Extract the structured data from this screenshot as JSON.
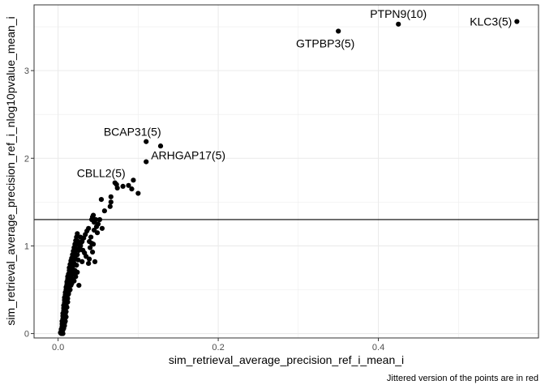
{
  "chart_data": {
    "type": "scatter",
    "xlabel": "sim_retrieval_average_precision_ref_i_mean_i",
    "ylabel": "sim_retrieval_average_precision_ref_i_nlog10pvalue_mean_i",
    "caption": "Jittered version of the points are in red",
    "xlim": [
      -0.03,
      0.6
    ],
    "ylim": [
      -0.05,
      3.75
    ],
    "x_ticks": [
      0.0,
      0.2,
      0.4
    ],
    "y_ticks": [
      0,
      1,
      2,
      3
    ],
    "x_tick_labels": [
      "0.0",
      "0.2",
      "0.4"
    ],
    "y_tick_labels": [
      "0",
      "1",
      "2",
      "3"
    ],
    "hline": 1.3,
    "grid": true,
    "point_color": "#000000",
    "points": [
      [
        0.003,
        0.01
      ],
      [
        0.004,
        0.03
      ],
      [
        0.004,
        0.05
      ],
      [
        0.005,
        0.08
      ],
      [
        0.005,
        0.11
      ],
      [
        0.005,
        0.14
      ],
      [
        0.006,
        0.17
      ],
      [
        0.006,
        0.2
      ],
      [
        0.006,
        0.23
      ],
      [
        0.007,
        0.26
      ],
      [
        0.007,
        0.29
      ],
      [
        0.007,
        0.32
      ],
      [
        0.008,
        0.35
      ],
      [
        0.008,
        0.38
      ],
      [
        0.008,
        0.41
      ],
      [
        0.009,
        0.44
      ],
      [
        0.009,
        0.47
      ],
      [
        0.01,
        0.5
      ],
      [
        0.01,
        0.53
      ],
      [
        0.011,
        0.56
      ],
      [
        0.011,
        0.59
      ],
      [
        0.012,
        0.62
      ],
      [
        0.012,
        0.65
      ],
      [
        0.013,
        0.68
      ],
      [
        0.014,
        0.72
      ],
      [
        0.014,
        0.75
      ],
      [
        0.015,
        0.79
      ],
      [
        0.016,
        0.83
      ],
      [
        0.017,
        0.86
      ],
      [
        0.018,
        0.9
      ],
      [
        0.019,
        0.94
      ],
      [
        0.02,
        0.98
      ],
      [
        0.021,
        1.02
      ],
      [
        0.022,
        1.06
      ],
      [
        0.023,
        1.1
      ],
      [
        0.024,
        1.14
      ],
      [
        0.009,
        0.22
      ],
      [
        0.01,
        0.32
      ],
      [
        0.011,
        0.42
      ],
      [
        0.012,
        0.52
      ],
      [
        0.013,
        0.58
      ],
      [
        0.014,
        0.63
      ],
      [
        0.015,
        0.68
      ],
      [
        0.016,
        0.73
      ],
      [
        0.017,
        0.77
      ],
      [
        0.018,
        0.82
      ],
      [
        0.019,
        0.86
      ],
      [
        0.02,
        0.9
      ],
      [
        0.021,
        0.94
      ],
      [
        0.022,
        0.97
      ],
      [
        0.012,
        0.36
      ],
      [
        0.013,
        0.47
      ],
      [
        0.014,
        0.55
      ],
      [
        0.015,
        0.6
      ],
      [
        0.016,
        0.66
      ],
      [
        0.017,
        0.71
      ],
      [
        0.018,
        0.76
      ],
      [
        0.02,
        0.8
      ],
      [
        0.022,
        0.85
      ],
      [
        0.024,
        0.9
      ],
      [
        0.026,
        0.95
      ],
      [
        0.028,
        1.0
      ],
      [
        0.03,
        1.05
      ],
      [
        0.032,
        1.09
      ],
      [
        0.034,
        1.13
      ],
      [
        0.036,
        1.17
      ],
      [
        0.027,
        0.98
      ],
      [
        0.029,
        1.04
      ],
      [
        0.031,
        0.95
      ],
      [
        0.033,
        0.92
      ],
      [
        0.035,
        0.88
      ],
      [
        0.026,
        0.55
      ],
      [
        0.03,
        0.82
      ],
      [
        0.025,
        1.05
      ],
      [
        0.024,
        1.02
      ],
      [
        0.028,
        1.1
      ],
      [
        0.038,
        1.2
      ],
      [
        0.039,
        1.05
      ],
      [
        0.04,
        0.98
      ],
      [
        0.041,
        1.1
      ],
      [
        0.042,
        1.03
      ],
      [
        0.043,
        0.93
      ],
      [
        0.044,
        1.02
      ],
      [
        0.045,
        1.18
      ],
      [
        0.045,
        1.27
      ],
      [
        0.047,
        1.3
      ],
      [
        0.048,
        1.22
      ],
      [
        0.049,
        1.15
      ],
      [
        0.05,
        1.25
      ],
      [
        0.052,
        1.3
      ],
      [
        0.046,
        0.82
      ],
      [
        0.039,
        0.85
      ],
      [
        0.038,
        0.8
      ],
      [
        0.042,
        1.3
      ],
      [
        0.043,
        1.33
      ],
      [
        0.044,
        1.35
      ],
      [
        0.055,
        1.2
      ],
      [
        0.054,
        1.53
      ],
      [
        0.058,
        1.4
      ],
      [
        0.065,
        1.45
      ],
      [
        0.066,
        1.5
      ],
      [
        0.066,
        1.56
      ],
      [
        0.071,
        1.72
      ],
      [
        0.073,
        1.7
      ],
      [
        0.074,
        1.66
      ],
      [
        0.081,
        1.68
      ],
      [
        0.088,
        1.69
      ],
      [
        0.092,
        1.65
      ],
      [
        0.094,
        1.75
      ],
      [
        0.1,
        1.6
      ],
      [
        0.11,
        1.96
      ],
      [
        0.11,
        2.19
      ],
      [
        0.128,
        2.14
      ],
      [
        0.35,
        3.45
      ],
      [
        0.425,
        3.53
      ],
      [
        0.573,
        3.56
      ],
      [
        0.006,
        0.0
      ],
      [
        0.005,
        0.02
      ],
      [
        0.007,
        0.06
      ],
      [
        0.008,
        0.12
      ],
      [
        0.009,
        0.18
      ],
      [
        0.01,
        0.25
      ],
      [
        0.011,
        0.3
      ],
      [
        0.012,
        0.4
      ],
      [
        0.013,
        0.45
      ],
      [
        0.008,
        0.09
      ],
      [
        0.009,
        0.14
      ],
      [
        0.01,
        0.19
      ],
      [
        0.006,
        0.04
      ],
      [
        0.004,
        0.0
      ],
      [
        0.015,
        0.5
      ],
      [
        0.016,
        0.55
      ],
      [
        0.018,
        0.62
      ],
      [
        0.019,
        0.68
      ],
      [
        0.021,
        0.72
      ],
      [
        0.023,
        0.78
      ],
      [
        0.025,
        0.84
      ],
      [
        0.02,
        0.6
      ],
      [
        0.022,
        0.65
      ],
      [
        0.024,
        0.7
      ],
      [
        0.017,
        0.57
      ],
      [
        0.014,
        0.5
      ]
    ],
    "labels": [
      {
        "text": "KLC3(5)",
        "x": 0.573,
        "y": 3.56,
        "anchor": "right"
      },
      {
        "text": "PTPN9(10)",
        "x": 0.425,
        "y": 3.53,
        "anchor": "above"
      },
      {
        "text": "GTPBP3(5)",
        "x": 0.35,
        "y": 3.45,
        "anchor": "below"
      },
      {
        "text": "BCAP31(5)",
        "x": 0.11,
        "y": 2.19,
        "anchor": "above-left"
      },
      {
        "text": "ARHGAP17(5)",
        "x": 0.11,
        "y": 1.96,
        "anchor": "right-above"
      },
      {
        "text": "CBLL2(5)",
        "x": 0.071,
        "y": 1.72,
        "anchor": "above-left"
      }
    ]
  }
}
